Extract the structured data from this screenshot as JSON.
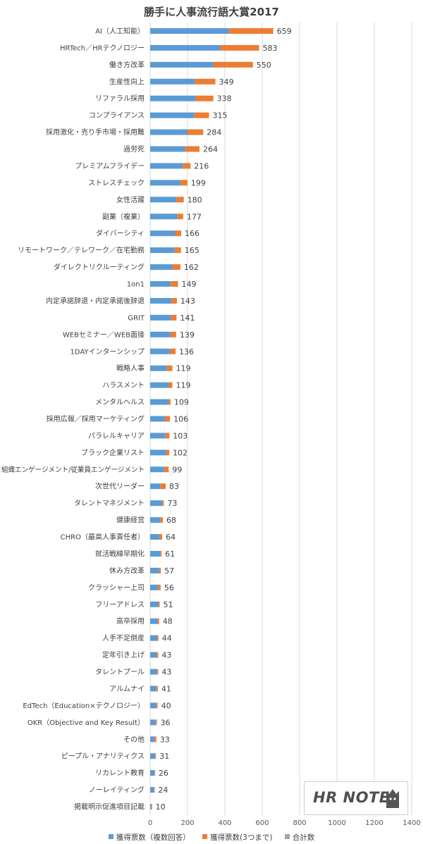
{
  "chart_data": {
    "type": "bar",
    "orientation": "horizontal",
    "stacked": true,
    "title": "勝手に人事流行語大賞2017",
    "categories": [
      "AI（人工知能）",
      "HRTech／HRテクノロジー",
      "働き方改革",
      "生産性向上",
      "リファラル採用",
      "コンプライアンス",
      "採用激化・売り手市場・採用難",
      "過労死",
      "プレミアムフライデー",
      "ストレスチェック",
      "女性活躍",
      "副業（複業）",
      "ダイバーシティ",
      "リモートワーク／テレワーク／在宅勤務",
      "ダイレクトリクルーティング",
      "1on1",
      "内定承諾辞退・内定承諾後辞退",
      "GRIT",
      "WEBセミナー／WEB面接",
      "1DAYインターンシップ",
      "戦略人事",
      "ハラスメント",
      "メンタルヘルス",
      "採用広報／採用マーケティング",
      "パラレルキャリア",
      "ブラック企業リスト",
      "組織エンゲージメント/従業員エンゲージメント",
      "次世代リーダー",
      "タレントマネジメント",
      "健康経営",
      "CHRO（最高人事責任者）",
      "就活戦線早期化",
      "休み方改革",
      "クラッシャー上司",
      "フリーアドレス",
      "高卒採用",
      "人手不足倒産",
      "定年引き上げ",
      "タレントプール",
      "アルムナイ",
      "EdTech（Education×テクノロジー）",
      "OKR（Objective and Key Result）",
      "その他",
      "ピープル・アナリティクス",
      "リカレント教育",
      "ノーレイティング",
      "掲載明示促進項目記載"
    ],
    "series": [
      {
        "name": "獲得票数（複数回答）",
        "values": [
          423,
          378,
          338,
          240,
          243,
          237,
          200,
          188,
          176,
          163,
          141,
          145,
          134,
          131,
          119,
          110,
          114,
          111,
          109,
          105,
          90,
          98,
          98,
          79,
          82,
          85,
          75,
          54,
          65,
          54,
          50,
          53,
          48,
          42,
          45,
          41,
          38,
          34,
          37,
          33,
          33,
          29,
          23,
          27,
          23,
          21,
          7
        ]
      },
      {
        "name": "獲得票数(3つまで)",
        "values": [
          236,
          205,
          212,
          109,
          95,
          78,
          84,
          76,
          40,
          36,
          39,
          32,
          32,
          34,
          43,
          39,
          29,
          30,
          30,
          31,
          29,
          21,
          11,
          27,
          21,
          17,
          24,
          29,
          8,
          14,
          14,
          8,
          9,
          14,
          6,
          7,
          6,
          9,
          6,
          8,
          7,
          7,
          10,
          4,
          3,
          3,
          3
        ]
      },
      {
        "name": "合計数",
        "values": [
          659,
          583,
          550,
          349,
          338,
          315,
          284,
          264,
          216,
          199,
          180,
          177,
          166,
          165,
          162,
          149,
          143,
          141,
          139,
          136,
          119,
          119,
          109,
          106,
          103,
          102,
          99,
          83,
          73,
          68,
          64,
          61,
          57,
          56,
          51,
          48,
          44,
          43,
          43,
          41,
          40,
          36,
          33,
          31,
          26,
          24,
          10
        ]
      }
    ],
    "xlim": [
      0,
      1400
    ],
    "xticks": [
      0,
      200,
      400,
      600,
      800,
      1000,
      1200,
      1400
    ],
    "grid": true,
    "legend_position": "bottom",
    "colors": {
      "series1": "#5b9bd5",
      "series2": "#ed7d31",
      "series3": "#a5a5a5",
      "grid": "#d9d9d9",
      "text": "#404040"
    }
  },
  "logo": {
    "text": "HR NOTE"
  }
}
